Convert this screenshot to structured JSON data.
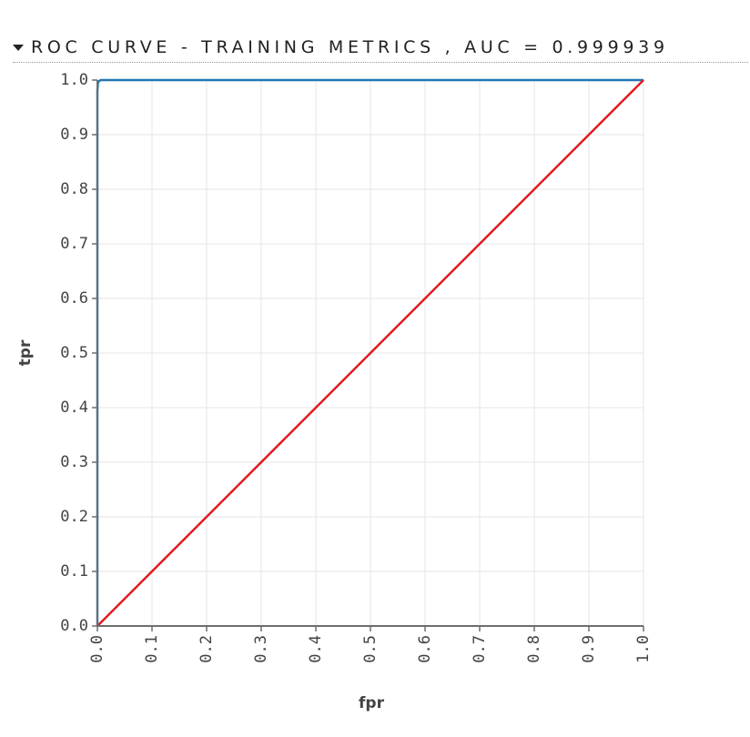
{
  "header": {
    "title": "ROC CURVE - TRAINING METRICS , AUC = 0.999939"
  },
  "chart_data": {
    "type": "line",
    "title": "ROC CURVE - TRAINING METRICS , AUC = 0.999939",
    "xlabel": "fpr",
    "ylabel": "tpr",
    "xlim": [
      0,
      1
    ],
    "ylim": [
      0,
      1
    ],
    "xticks": [
      "0.0",
      "0.1",
      "0.2",
      "0.3",
      "0.4",
      "0.5",
      "0.6",
      "0.7",
      "0.8",
      "0.9",
      "1.0"
    ],
    "yticks": [
      "0.0",
      "0.1",
      "0.2",
      "0.3",
      "0.4",
      "0.5",
      "0.6",
      "0.7",
      "0.8",
      "0.9",
      "1.0"
    ],
    "grid": true,
    "series": [
      {
        "color": "#1f77b4",
        "x": [
          0,
          0,
          0.001,
          0.003,
          0.006,
          0.02,
          0.1,
          0.3,
          0.6,
          1.0
        ],
        "y": [
          0,
          0.98,
          0.995,
          0.998,
          1.0,
          1.0,
          1.0,
          1.0,
          1.0,
          1.0
        ]
      },
      {
        "color": "#e31a1c",
        "x": [
          0,
          1
        ],
        "y": [
          0,
          1
        ]
      }
    ]
  }
}
